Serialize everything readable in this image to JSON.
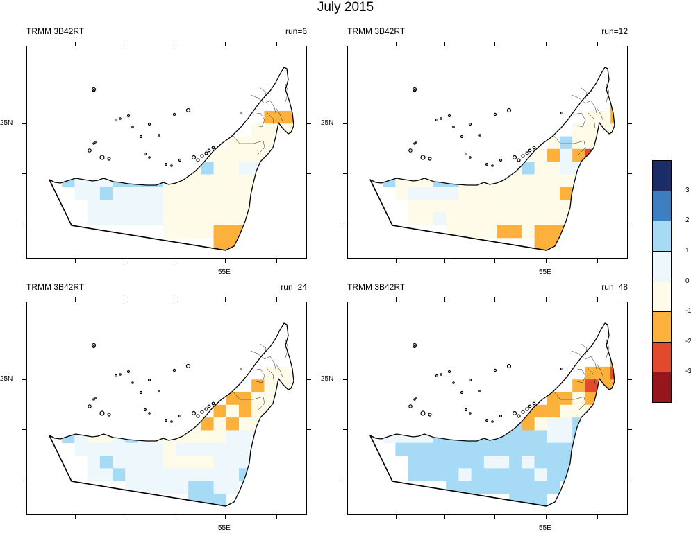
{
  "title": "July 2015",
  "colors": {
    "dark_navy": "#1b2c66",
    "mid_blue": "#3d7ec0",
    "light_blue": "#a6daf5",
    "pale_blue": "#eef8fc",
    "cream": "#fffbe9",
    "orange": "#fbb13c",
    "red_orange": "#e2492d",
    "dark_red": "#95161b",
    "outline": "#000000"
  },
  "colorbar": {
    "labels": [
      "3",
      "2",
      "1",
      "0",
      "-1",
      "-2",
      "-3"
    ],
    "boxes": [
      "#1b2c66",
      "#3d7ec0",
      "#a6daf5",
      "#eef8fc",
      "#fffbe9",
      "#fbb13c",
      "#e2492d",
      "#95161b"
    ]
  },
  "panels": [
    {
      "left_label": "TRMM 3B42RT",
      "right_label": "run=6",
      "lat_label": "25N",
      "lon_label": "55E"
    },
    {
      "left_label": "TRMM 3B42RT",
      "right_label": "run=12",
      "lat_label": "25N",
      "lon_label": "55E"
    },
    {
      "left_label": "TRMM 3B42RT",
      "right_label": "run=24",
      "lat_label": "25N",
      "lon_label": "55E"
    },
    {
      "left_label": "TRMM 3B42RT",
      "right_label": "run=48",
      "lat_label": "25N",
      "lon_label": "55E"
    }
  ]
}
